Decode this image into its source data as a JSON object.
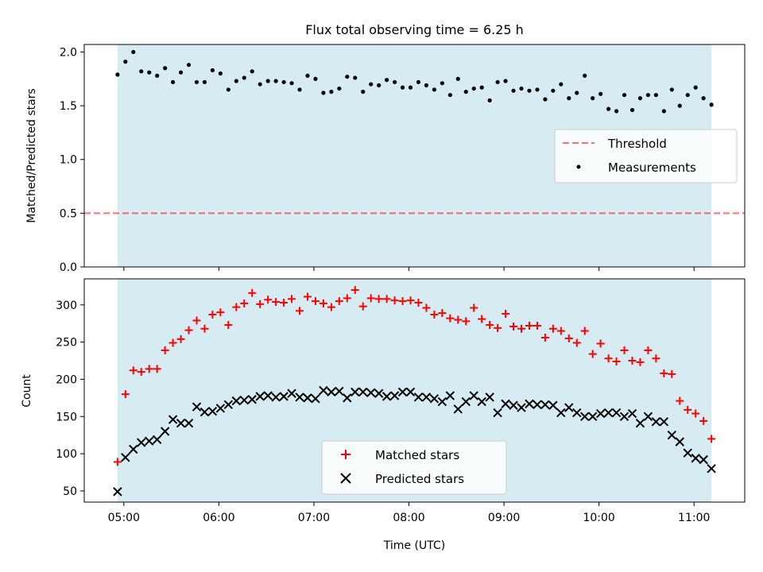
{
  "chart_data": [
    {
      "type": "scatter",
      "title": "Flux total observing time = 6.25 h",
      "xlabel": "",
      "ylabel": "Matched/Predicted stars",
      "ylim": [
        0,
        2.07
      ],
      "y_ticks": [
        "0.0",
        "0.5",
        "1.0",
        "1.5",
        "2.0"
      ],
      "shaded_region_x": [
        "04:56",
        "11:11"
      ],
      "shade_color": "#add8e6",
      "legend_position": "center-right",
      "threshold": {
        "name": "Threshold",
        "value": 0.5,
        "color": "#ff0000",
        "style": "dashed"
      },
      "series": [
        {
          "name": "Measurements",
          "color": "#000000",
          "marker": "dot",
          "x": [
            "04:56",
            "05:01",
            "05:06",
            "05:11",
            "05:16",
            "05:21",
            "05:26",
            "05:31",
            "05:36",
            "05:41",
            "05:46",
            "05:51",
            "05:56",
            "06:01",
            "06:06",
            "06:11",
            "06:16",
            "06:21",
            "06:26",
            "06:31",
            "06:36",
            "06:41",
            "06:46",
            "06:51",
            "06:56",
            "07:01",
            "07:06",
            "07:11",
            "07:16",
            "07:21",
            "07:26",
            "07:31",
            "07:36",
            "07:41",
            "07:46",
            "07:51",
            "07:56",
            "08:01",
            "08:06",
            "08:11",
            "08:16",
            "08:21",
            "08:26",
            "08:31",
            "08:36",
            "08:41",
            "08:46",
            "08:51",
            "08:56",
            "09:01",
            "09:06",
            "09:11",
            "09:16",
            "09:21",
            "09:26",
            "09:31",
            "09:36",
            "09:41",
            "09:46",
            "09:51",
            "09:56",
            "10:01",
            "10:06",
            "10:11",
            "10:16",
            "10:21",
            "10:26",
            "10:31",
            "10:36",
            "10:41",
            "10:46",
            "10:51",
            "10:56",
            "11:01",
            "11:06",
            "11:11"
          ],
          "y": [
            1.79,
            1.91,
            2.0,
            1.82,
            1.81,
            1.78,
            1.85,
            1.72,
            1.81,
            1.88,
            1.72,
            1.72,
            1.83,
            1.8,
            1.65,
            1.73,
            1.76,
            1.82,
            1.7,
            1.73,
            1.73,
            1.72,
            1.71,
            1.65,
            1.78,
            1.75,
            1.62,
            1.63,
            1.66,
            1.77,
            1.76,
            1.63,
            1.7,
            1.69,
            1.74,
            1.72,
            1.67,
            1.67,
            1.72,
            1.69,
            1.65,
            1.71,
            1.6,
            1.75,
            1.63,
            1.66,
            1.67,
            1.55,
            1.72,
            1.73,
            1.64,
            1.66,
            1.64,
            1.65,
            1.56,
            1.64,
            1.7,
            1.57,
            1.62,
            1.78,
            1.57,
            1.61,
            1.47,
            1.45,
            1.6,
            1.46,
            1.57,
            1.6,
            1.6,
            1.45,
            1.65,
            1.5,
            1.6,
            1.67,
            1.57,
            1.51
          ]
        }
      ]
    },
    {
      "type": "scatter",
      "title": "",
      "xlabel": "Time (UTC)",
      "ylabel": "Count",
      "ylim": [
        35,
        335
      ],
      "y_ticks": [
        "50",
        "100",
        "150",
        "200",
        "250",
        "300"
      ],
      "x_ticks": [
        "05:00",
        "06:00",
        "07:00",
        "08:00",
        "09:00",
        "10:00",
        "11:00"
      ],
      "legend_position": "bottom-center",
      "series": [
        {
          "name": "Matched stars",
          "color": "#ff0000",
          "marker": "plus",
          "x": [
            "04:56",
            "05:01",
            "05:06",
            "05:11",
            "05:16",
            "05:21",
            "05:26",
            "05:31",
            "05:36",
            "05:41",
            "05:46",
            "05:51",
            "05:56",
            "06:01",
            "06:06",
            "06:11",
            "06:16",
            "06:21",
            "06:26",
            "06:31",
            "06:36",
            "06:41",
            "06:46",
            "06:51",
            "06:56",
            "07:01",
            "07:06",
            "07:11",
            "07:16",
            "07:21",
            "07:26",
            "07:31",
            "07:36",
            "07:41",
            "07:46",
            "07:51",
            "07:56",
            "08:01",
            "08:06",
            "08:11",
            "08:16",
            "08:21",
            "08:26",
            "08:31",
            "08:36",
            "08:41",
            "08:46",
            "08:51",
            "08:56",
            "09:01",
            "09:06",
            "09:11",
            "09:16",
            "09:21",
            "09:26",
            "09:31",
            "09:36",
            "09:41",
            "09:46",
            "09:51",
            "09:56",
            "10:01",
            "10:06",
            "10:11",
            "10:16",
            "10:21",
            "10:26",
            "10:31",
            "10:36",
            "10:41",
            "10:46",
            "10:51",
            "10:56",
            "11:01",
            "11:06",
            "11:11"
          ],
          "y": [
            89,
            180,
            212,
            210,
            214,
            214,
            239,
            249,
            254,
            266,
            279,
            268,
            287,
            290,
            273,
            297,
            302,
            316,
            301,
            307,
            304,
            303,
            308,
            292,
            311,
            305,
            302,
            297,
            305,
            309,
            320,
            298,
            309,
            308,
            308,
            306,
            305,
            306,
            303,
            296,
            287,
            289,
            282,
            280,
            278,
            296,
            281,
            273,
            269,
            288,
            271,
            268,
            272,
            272,
            256,
            268,
            265,
            255,
            249,
            265,
            234,
            248,
            228,
            224,
            239,
            225,
            223,
            239,
            228,
            208,
            207,
            171,
            159,
            154,
            144,
            120
          ]
        },
        {
          "name": "Predicted stars",
          "color": "#000000",
          "marker": "x",
          "x": [
            "04:56",
            "05:01",
            "05:06",
            "05:11",
            "05:16",
            "05:21",
            "05:26",
            "05:31",
            "05:36",
            "05:41",
            "05:46",
            "05:51",
            "05:56",
            "06:01",
            "06:06",
            "06:11",
            "06:16",
            "06:21",
            "06:26",
            "06:31",
            "06:36",
            "06:41",
            "06:46",
            "06:51",
            "06:56",
            "07:01",
            "07:06",
            "07:11",
            "07:16",
            "07:21",
            "07:26",
            "07:31",
            "07:36",
            "07:41",
            "07:46",
            "07:51",
            "07:56",
            "08:01",
            "08:06",
            "08:11",
            "08:16",
            "08:21",
            "08:26",
            "08:31",
            "08:36",
            "08:41",
            "08:46",
            "08:51",
            "08:56",
            "09:01",
            "09:06",
            "09:11",
            "09:16",
            "09:21",
            "09:26",
            "09:31",
            "09:36",
            "09:41",
            "09:46",
            "09:51",
            "09:56",
            "10:01",
            "10:06",
            "10:11",
            "10:16",
            "10:21",
            "10:26",
            "10:31",
            "10:36",
            "10:41",
            "10:46",
            "10:51",
            "10:56",
            "11:01",
            "11:06",
            "11:11"
          ],
          "y": [
            49,
            95,
            106,
            115,
            117,
            119,
            130,
            146,
            141,
            141,
            163,
            156,
            157,
            161,
            166,
            171,
            172,
            173,
            177,
            178,
            176,
            177,
            181,
            176,
            175,
            174,
            185,
            183,
            184,
            175,
            183,
            183,
            182,
            181,
            177,
            178,
            183,
            183,
            176,
            176,
            174,
            170,
            178,
            160,
            170,
            178,
            170,
            176,
            155,
            167,
            165,
            162,
            167,
            166,
            166,
            165,
            155,
            162,
            155,
            150,
            150,
            154,
            155,
            155,
            150,
            154,
            141,
            150,
            143,
            143,
            125,
            116,
            101,
            94,
            92,
            80
          ]
        }
      ]
    }
  ]
}
